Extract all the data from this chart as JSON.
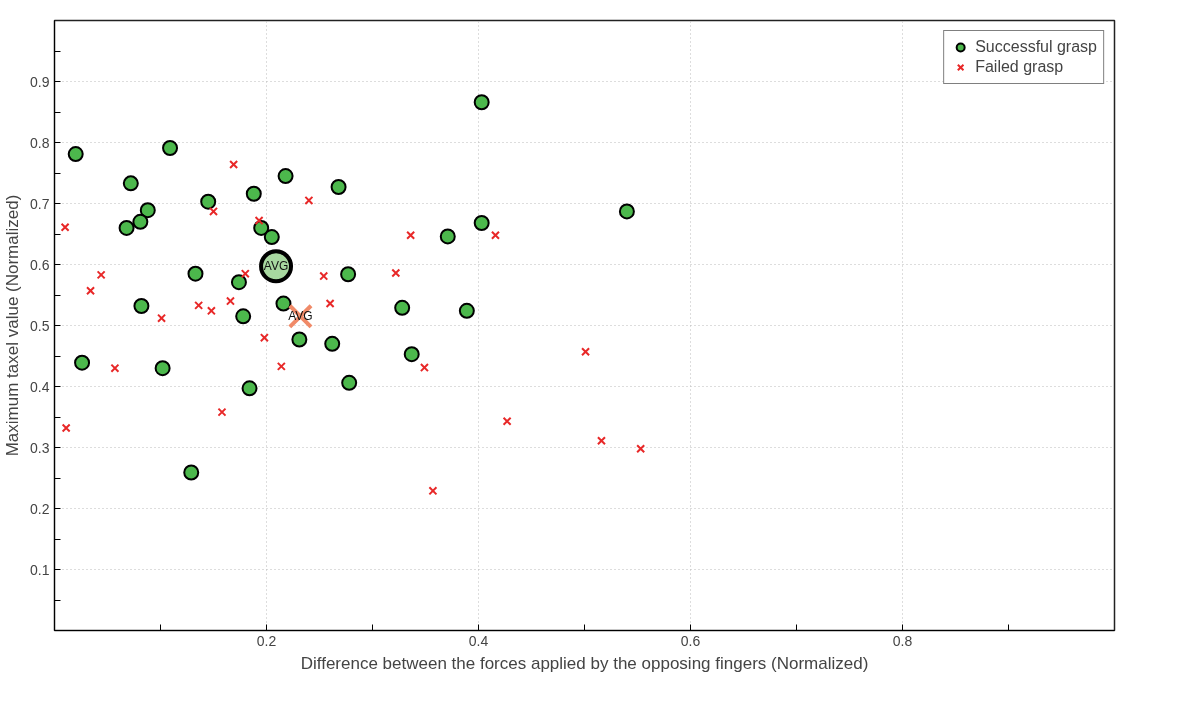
{
  "chart_data": {
    "type": "scatter",
    "xlabel": "Difference between the forces applied by the opposing fingers (Normalized)",
    "ylabel": "Maximum taxel value (Normalized)",
    "xlim": [
      0,
      1
    ],
    "ylim": [
      0,
      1
    ],
    "xticks": [
      {
        "value": 0.1,
        "label": null
      },
      0.2,
      {
        "value": 0.3,
        "label": null
      },
      0.4,
      {
        "value": 0.5,
        "label": null
      },
      0.6,
      {
        "value": 0.7,
        "label": null
      },
      0.8,
      {
        "value": 0.9,
        "label": null
      }
    ],
    "yticks": [
      {
        "value": 0.05,
        "label": null
      },
      0.1,
      {
        "value": 0.15,
        "label": null
      },
      0.2,
      {
        "value": 0.25,
        "label": null
      },
      0.3,
      {
        "value": 0.35,
        "label": null
      },
      0.4,
      {
        "value": 0.45,
        "label": null
      },
      0.5,
      {
        "value": 0.55,
        "label": null
      },
      0.6,
      {
        "value": 0.65,
        "label": null
      },
      0.7,
      {
        "value": 0.75,
        "label": null
      },
      0.8,
      {
        "value": 0.85,
        "label": null
      },
      0.9,
      {
        "value": 0.95,
        "label": null
      }
    ],
    "grid": true,
    "legend": "top right",
    "series": [
      {
        "name": "Successful grasp",
        "color": "#4cb84c",
        "marker": "circle",
        "x": [
          0.02,
          0.109,
          0.072,
          0.088,
          0.081,
          0.068,
          0.145,
          0.218,
          0.188,
          0.268,
          0.195,
          0.205,
          0.133,
          0.174,
          0.277,
          0.082,
          0.178,
          0.216,
          0.231,
          0.262,
          0.026,
          0.102,
          0.184,
          0.278,
          0.129,
          0.403,
          0.403,
          0.371,
          0.54,
          0.328,
          0.389,
          0.337
        ],
        "values": [
          0.781,
          0.791,
          0.733,
          0.689,
          0.67,
          0.66,
          0.703,
          0.745,
          0.716,
          0.727,
          0.66,
          0.645,
          0.585,
          0.571,
          0.584,
          0.532,
          0.515,
          0.536,
          0.477,
          0.47,
          0.439,
          0.43,
          0.397,
          0.406,
          0.259,
          0.866,
          0.668,
          0.646,
          0.687,
          0.529,
          0.524,
          0.453
        ]
      },
      {
        "name": "Failed grasp",
        "color": "#e82828",
        "marker": "cross",
        "x": [
          0.01,
          0.044,
          0.034,
          0.101,
          0.136,
          0.148,
          0.166,
          0.18,
          0.169,
          0.15,
          0.193,
          0.24,
          0.254,
          0.26,
          0.198,
          0.214,
          0.057,
          0.011,
          0.158,
          0.336,
          0.416,
          0.322,
          0.349,
          0.501,
          0.427,
          0.516,
          0.553,
          0.357
        ],
        "values": [
          0.661,
          0.583,
          0.557,
          0.512,
          0.533,
          0.524,
          0.54,
          0.585,
          0.764,
          0.687,
          0.672,
          0.705,
          0.581,
          0.536,
          0.48,
          0.433,
          0.43,
          0.332,
          0.358,
          0.648,
          0.648,
          0.586,
          0.431,
          0.457,
          0.343,
          0.311,
          0.298,
          0.229
        ]
      },
      {
        "color": "#a8d8a0",
        "marker": "circle",
        "x": [
          0.209
        ],
        "values": [
          0.597
        ]
      },
      {
        "color": "#f08a68",
        "marker": "cross",
        "x": [
          0.232
        ],
        "values": [
          0.515
        ]
      }
    ],
    "annotations": [
      {
        "text": "AVG",
        "x": 0.209,
        "y": 0.597
      },
      {
        "text": "AVG",
        "x": 0.232,
        "y": 0.515
      }
    ]
  }
}
